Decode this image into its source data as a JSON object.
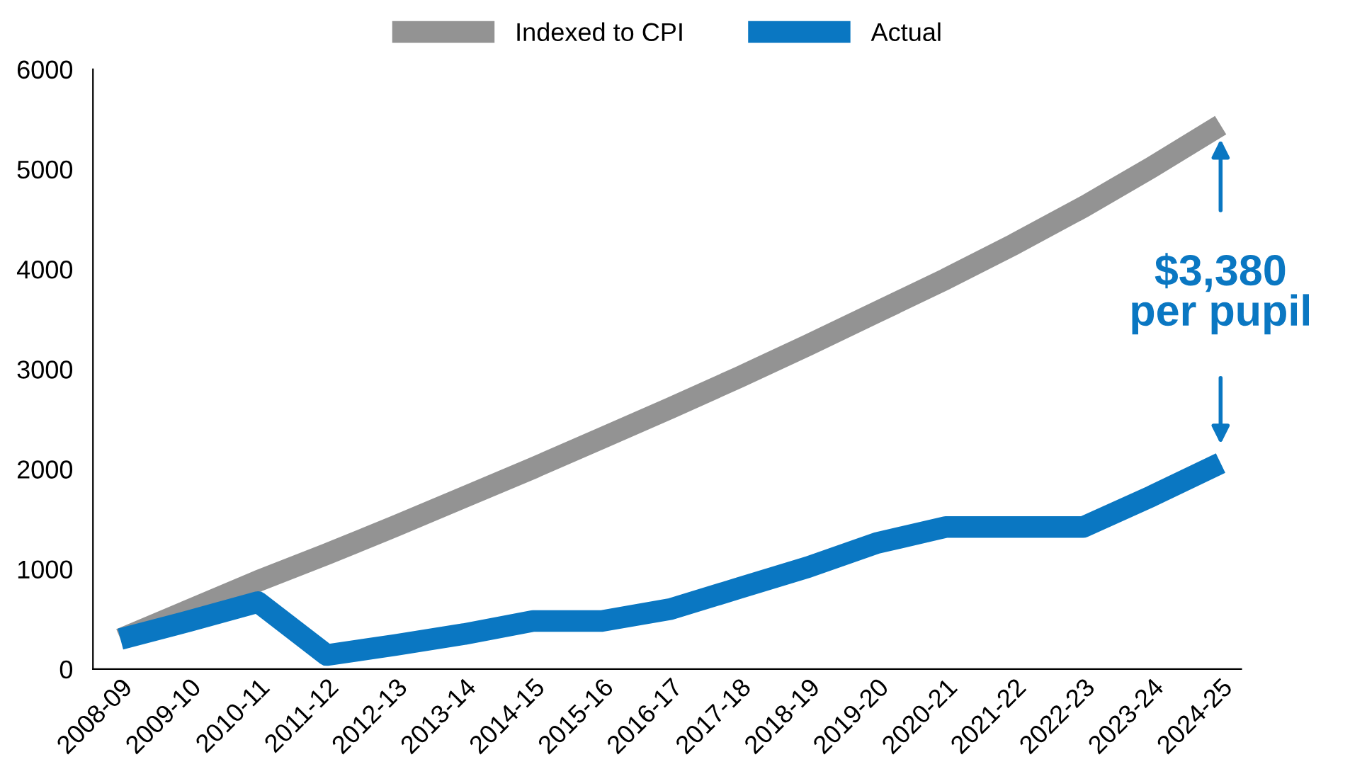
{
  "chart_data": {
    "type": "line",
    "categories": [
      "2008-09",
      "2009-10",
      "2010-11",
      "2011-12",
      "2012-13",
      "2013-14",
      "2014-15",
      "2015-16",
      "2016-17",
      "2017-18",
      "2018-19",
      "2019-20",
      "2020-21",
      "2021-22",
      "2022-23",
      "2023-24",
      "2024-25"
    ],
    "series": [
      {
        "name": "Indexed to CPI",
        "color": "#939393",
        "values": [
          300,
          590,
          880,
          1150,
          1430,
          1720,
          2010,
          2310,
          2610,
          2920,
          3240,
          3570,
          3900,
          4250,
          4620,
          5020,
          5440
        ]
      },
      {
        "name": "Actual",
        "color": "#0a77c2",
        "values": [
          300,
          480,
          670,
          140,
          240,
          350,
          480,
          480,
          600,
          810,
          1020,
          1260,
          1420,
          1420,
          1420,
          1730,
          2060
        ]
      }
    ],
    "ylim": [
      0,
      6000
    ],
    "yticks": [
      0,
      1000,
      2000,
      3000,
      4000,
      5000,
      6000
    ],
    "annotations": [
      {
        "text": "$3,380\nper pupil",
        "x": "2024-25",
        "y": 5440
      }
    ],
    "grid": false,
    "legend": "top",
    "marker": "none",
    "line_style": "solid"
  }
}
